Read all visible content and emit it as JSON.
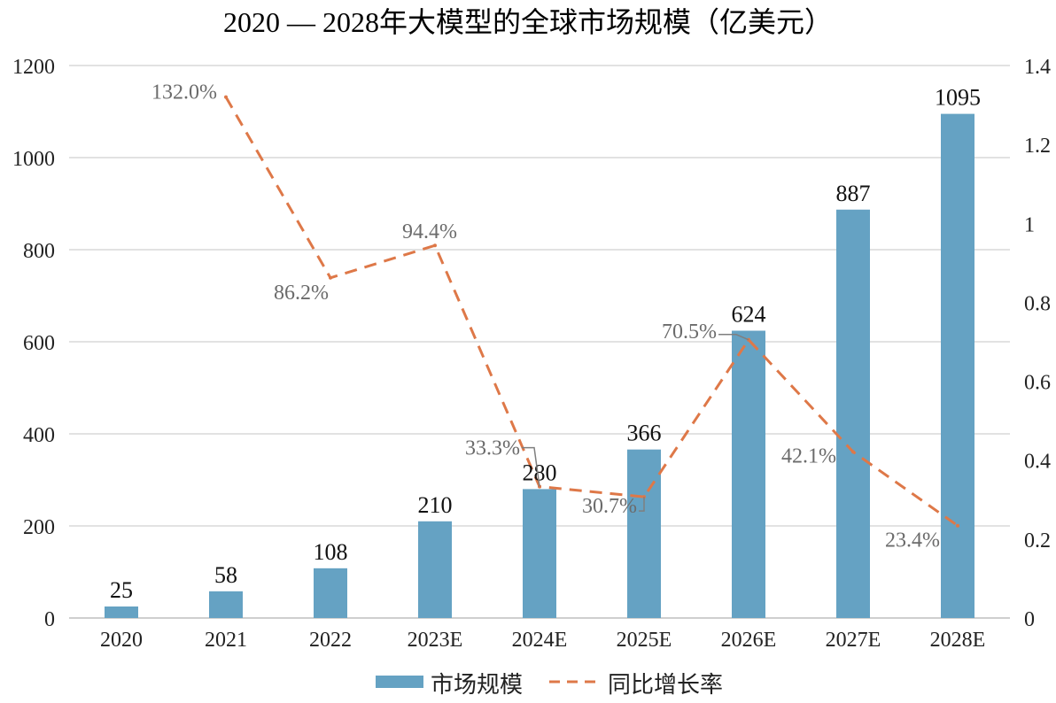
{
  "chart_data": {
    "type": "bar",
    "title": "2020 — 2028年大模型的全球市场规模（亿美元）",
    "categories": [
      "2020",
      "2021",
      "2022",
      "2023E",
      "2024E",
      "2025E",
      "2026E",
      "2027E",
      "2028E"
    ],
    "series": [
      {
        "name": "市场规模",
        "type": "bar",
        "axis": "left",
        "color": "#65A2C3",
        "values": [
          25,
          58,
          108,
          210,
          280,
          366,
          624,
          887,
          1095
        ],
        "labels": [
          "25",
          "58",
          "108",
          "210",
          "280",
          "366",
          "624",
          "887",
          "1095"
        ]
      },
      {
        "name": "同比增长率",
        "type": "line",
        "style": "dashed",
        "axis": "right",
        "color": "#DE7848",
        "values": [
          null,
          1.32,
          0.862,
          0.944,
          0.333,
          0.307,
          0.705,
          0.421,
          0.234
        ],
        "labels": [
          null,
          "132.0%",
          "86.2%",
          "94.4%",
          "33.3%",
          "30.7%",
          "70.5%",
          "42.1%",
          "23.4%"
        ]
      }
    ],
    "y_left": {
      "min": 0,
      "max": 1200,
      "ticks": [
        "0",
        "200",
        "400",
        "600",
        "800",
        "1000",
        "1200"
      ]
    },
    "y_right": {
      "min": 0,
      "max": 1.4,
      "ticks": [
        "0",
        "0.2",
        "0.4",
        "0.6",
        "0.8",
        "1",
        "1.2",
        "1.4"
      ]
    },
    "grid": true,
    "legend": "bottom-center"
  }
}
